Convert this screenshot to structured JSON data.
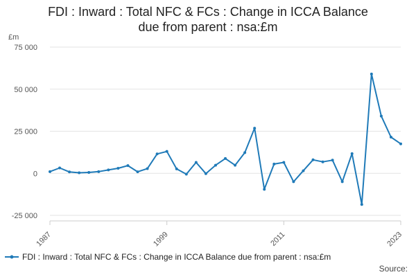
{
  "chart_data": {
    "type": "line",
    "title_lines": [
      "FDI : Inward : Total NFC & FCs : Change in ICCA Balance",
      "due from parent : nsa:£m"
    ],
    "ylabel": "£m",
    "ylim": [
      -25000,
      75000
    ],
    "yticks": [
      75000,
      50000,
      25000,
      0,
      -25000
    ],
    "ytick_labels": [
      "75 000",
      "50 000",
      "25 000",
      "0",
      "-25 000"
    ],
    "xlim": [
      1987,
      2023
    ],
    "xticks": [
      1987,
      1999,
      2011,
      2023
    ],
    "xtick_labels": [
      "1987",
      "1999",
      "2011",
      "2023"
    ],
    "grid": "horizontal",
    "color": "#1f7ab8",
    "series": [
      {
        "name": "FDI : Inward : Total NFC & FCs : Change in ICCA Balance due from parent : nsa:£m",
        "x": [
          1987,
          1988,
          1989,
          1990,
          1991,
          1992,
          1993,
          1994,
          1995,
          1996,
          1997,
          1998,
          1999,
          2000,
          2001,
          2002,
          2003,
          2004,
          2005,
          2006,
          2007,
          2008,
          2009,
          2010,
          2011,
          2012,
          2013,
          2014,
          2015,
          2016,
          2017,
          2018,
          2019,
          2020,
          2021,
          2022,
          2023
        ],
        "values": [
          1000,
          3200,
          800,
          300,
          500,
          1000,
          2000,
          3000,
          4600,
          900,
          2800,
          11500,
          13000,
          2600,
          -500,
          6500,
          -200,
          4800,
          8800,
          4800,
          12300,
          26800,
          -9500,
          5500,
          6500,
          -5000,
          1500,
          8000,
          6800,
          7800,
          -5000,
          11700,
          -18500,
          59000,
          34000,
          21500,
          17500
        ]
      }
    ],
    "legend": "bottom",
    "source_label": "Source:"
  }
}
